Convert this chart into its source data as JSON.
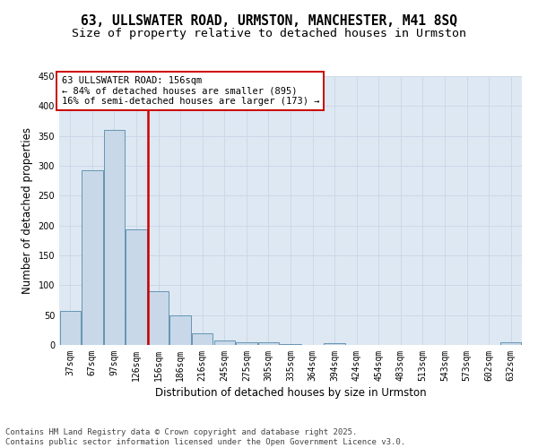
{
  "title1": "63, ULLSWATER ROAD, URMSTON, MANCHESTER, M41 8SQ",
  "title2": "Size of property relative to detached houses in Urmston",
  "xlabel": "Distribution of detached houses by size in Urmston",
  "ylabel": "Number of detached properties",
  "categories": [
    "37sqm",
    "67sqm",
    "97sqm",
    "126sqm",
    "156sqm",
    "186sqm",
    "216sqm",
    "245sqm",
    "275sqm",
    "305sqm",
    "335sqm",
    "364sqm",
    "394sqm",
    "424sqm",
    "454sqm",
    "483sqm",
    "513sqm",
    "543sqm",
    "573sqm",
    "602sqm",
    "632sqm"
  ],
  "values": [
    57,
    292,
    360,
    193,
    90,
    49,
    20,
    8,
    4,
    4,
    1,
    0,
    3,
    0,
    0,
    0,
    0,
    0,
    0,
    0,
    4
  ],
  "bar_color": "#c8d8e8",
  "bar_edge_color": "#5588aa",
  "vline_index": 4,
  "vline_color": "#cc0000",
  "annotation_line1": "63 ULLSWATER ROAD: 156sqm",
  "annotation_line2": "← 84% of detached houses are smaller (895)",
  "annotation_line3": "16% of semi-detached houses are larger (173) →",
  "annotation_box_color": "#ffffff",
  "annotation_box_edge": "#cc0000",
  "ylim": [
    0,
    450
  ],
  "yticks": [
    0,
    50,
    100,
    150,
    200,
    250,
    300,
    350,
    400,
    450
  ],
  "grid_color": "#ccd8e8",
  "background_color": "#dde8f2",
  "footer_line1": "Contains HM Land Registry data © Crown copyright and database right 2025.",
  "footer_line2": "Contains public sector information licensed under the Open Government Licence v3.0.",
  "title_fontsize": 10.5,
  "subtitle_fontsize": 9.5,
  "axis_label_fontsize": 8.5,
  "tick_fontsize": 7,
  "annotation_fontsize": 7.5,
  "footer_fontsize": 6.5
}
